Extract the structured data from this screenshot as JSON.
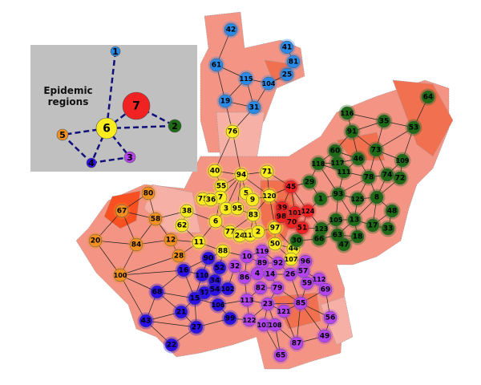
{
  "inset": {
    "title_line1": "Epidemic",
    "title_line2": "regions",
    "background": "#c0c0c0",
    "edge_color": "#10107a",
    "nodes": [
      {
        "id": "1",
        "region": "blue"
      },
      {
        "id": "2",
        "region": "green"
      },
      {
        "id": "3",
        "region": "purple"
      },
      {
        "id": "4",
        "region": "indigo"
      },
      {
        "id": "5",
        "region": "orange"
      },
      {
        "id": "6",
        "region": "yellow"
      },
      {
        "id": "7",
        "region": "red"
      }
    ],
    "edges": [
      [
        "1",
        "6"
      ],
      [
        "6",
        "7"
      ],
      [
        "7",
        "2"
      ],
      [
        "6",
        "2"
      ],
      [
        "6",
        "5"
      ],
      [
        "5",
        "4"
      ],
      [
        "6",
        "4"
      ],
      [
        "6",
        "3"
      ],
      [
        "4",
        "3"
      ]
    ]
  },
  "region_colors": {
    "blue": "#2a8ae8",
    "yellow": "#f8ec20",
    "red": "#f02222",
    "green": "#1e6a16",
    "orange": "#f09020",
    "indigo": "#2c10e8",
    "purple": "#b444f0"
  },
  "map_colors": {
    "light": "#f6b0a6",
    "mid": "#f49484",
    "dark": "#f07050",
    "hot": "#f85020",
    "border": "#999999"
  },
  "nodes": {
    "blue": [
      "42",
      "41",
      "81",
      "25",
      "61",
      "115",
      "104",
      "19",
      "31"
    ],
    "yellow": [
      "76",
      "40",
      "94",
      "71",
      "55",
      "7",
      "75",
      "36",
      "5",
      "9",
      "120",
      "3",
      "95",
      "83",
      "6",
      "38",
      "62",
      "11",
      "77",
      "24",
      "114",
      "2",
      "97",
      "50",
      "44",
      "88",
      "107"
    ],
    "red": [
      "45",
      "39",
      "98",
      "101",
      "70",
      "124",
      "51"
    ],
    "green": [
      "118",
      "29",
      "1",
      "60",
      "117",
      "111",
      "46",
      "116",
      "91",
      "35",
      "53",
      "64",
      "73",
      "109",
      "78",
      "74",
      "72",
      "93",
      "125",
      "8",
      "48",
      "105",
      "13",
      "17",
      "33",
      "123",
      "66",
      "63",
      "18",
      "47",
      "30"
    ],
    "orange": [
      "80",
      "67",
      "58",
      "20",
      "84",
      "12",
      "28",
      "100"
    ],
    "indigo": [
      "90",
      "16",
      "110",
      "52",
      "34",
      "37",
      "54",
      "102",
      "15",
      "106",
      "21",
      "99",
      "68",
      "43",
      "27",
      "22"
    ],
    "purple": [
      "10",
      "119",
      "89",
      "92",
      "96",
      "4",
      "14",
      "26",
      "57",
      "112",
      "86",
      "32",
      "59",
      "69",
      "82",
      "79",
      "113",
      "23",
      "121",
      "85",
      "56",
      "122",
      "103",
      "108",
      "87",
      "49",
      "65"
    ]
  },
  "edges": [
    [
      "42",
      "61"
    ],
    [
      "61",
      "19"
    ],
    [
      "61",
      "115"
    ],
    [
      "115",
      "19"
    ],
    [
      "115",
      "31"
    ],
    [
      "115",
      "104"
    ],
    [
      "104",
      "25"
    ],
    [
      "104",
      "31"
    ],
    [
      "19",
      "31"
    ],
    [
      "19",
      "76"
    ],
    [
      "31",
      "76"
    ],
    [
      "41",
      "81"
    ],
    [
      "81",
      "25"
    ],
    [
      "76",
      "40"
    ],
    [
      "76",
      "94"
    ],
    [
      "40",
      "94"
    ],
    [
      "40",
      "55"
    ],
    [
      "94",
      "55"
    ],
    [
      "94",
      "71"
    ],
    [
      "94",
      "5"
    ],
    [
      "94",
      "7"
    ],
    [
      "94",
      "3"
    ],
    [
      "94",
      "95"
    ],
    [
      "94",
      "120"
    ],
    [
      "71",
      "120"
    ],
    [
      "71",
      "45"
    ],
    [
      "55",
      "7"
    ],
    [
      "7",
      "75"
    ],
    [
      "7",
      "36"
    ],
    [
      "7",
      "6"
    ],
    [
      "5",
      "9"
    ],
    [
      "9",
      "120"
    ],
    [
      "120",
      "83"
    ],
    [
      "120",
      "45"
    ],
    [
      "120",
      "39"
    ],
    [
      "95",
      "83"
    ],
    [
      "3",
      "6"
    ],
    [
      "83",
      "77"
    ],
    [
      "83",
      "114"
    ],
    [
      "83",
      "2"
    ],
    [
      "6",
      "38"
    ],
    [
      "6",
      "11"
    ],
    [
      "6",
      "77"
    ],
    [
      "38",
      "62"
    ],
    [
      "38",
      "58"
    ],
    [
      "62",
      "11"
    ],
    [
      "11",
      "12"
    ],
    [
      "11",
      "88"
    ],
    [
      "11",
      "28"
    ],
    [
      "77",
      "24"
    ],
    [
      "24",
      "114"
    ],
    [
      "114",
      "2"
    ],
    [
      "2",
      "97"
    ],
    [
      "97",
      "50"
    ],
    [
      "97",
      "44"
    ],
    [
      "97",
      "120"
    ],
    [
      "50",
      "44"
    ],
    [
      "50",
      "119"
    ],
    [
      "50",
      "107"
    ],
    [
      "88",
      "10"
    ],
    [
      "88",
      "90"
    ],
    [
      "88",
      "52"
    ],
    [
      "45",
      "39"
    ],
    [
      "45",
      "101"
    ],
    [
      "45",
      "124"
    ],
    [
      "45",
      "29"
    ],
    [
      "39",
      "98"
    ],
    [
      "39",
      "101"
    ],
    [
      "98",
      "70"
    ],
    [
      "101",
      "70"
    ],
    [
      "101",
      "124"
    ],
    [
      "70",
      "51"
    ],
    [
      "124",
      "51"
    ],
    [
      "124",
      "1"
    ],
    [
      "124",
      "123"
    ],
    [
      "51",
      "123"
    ],
    [
      "51",
      "44"
    ],
    [
      "44",
      "30"
    ],
    [
      "118",
      "29"
    ],
    [
      "118",
      "117"
    ],
    [
      "118",
      "60"
    ],
    [
      "118",
      "111"
    ],
    [
      "118",
      "93"
    ],
    [
      "29",
      "1"
    ],
    [
      "29",
      "45"
    ],
    [
      "1",
      "93"
    ],
    [
      "60",
      "117"
    ],
    [
      "60",
      "46"
    ],
    [
      "60",
      "91"
    ],
    [
      "117",
      "111"
    ],
    [
      "117",
      "46"
    ],
    [
      "111",
      "46"
    ],
    [
      "111",
      "93"
    ],
    [
      "111",
      "78"
    ],
    [
      "116",
      "91"
    ],
    [
      "116",
      "35"
    ],
    [
      "91",
      "35"
    ],
    [
      "91",
      "46"
    ],
    [
      "91",
      "73"
    ],
    [
      "35",
      "53"
    ],
    [
      "35",
      "73"
    ],
    [
      "53",
      "64"
    ],
    [
      "53",
      "73"
    ],
    [
      "53",
      "109"
    ],
    [
      "73",
      "78"
    ],
    [
      "73",
      "74"
    ],
    [
      "73",
      "109"
    ],
    [
      "46",
      "78"
    ],
    [
      "109",
      "74"
    ],
    [
      "109",
      "72"
    ],
    [
      "78",
      "74"
    ],
    [
      "78",
      "93"
    ],
    [
      "78",
      "125"
    ],
    [
      "78",
      "8"
    ],
    [
      "74",
      "72"
    ],
    [
      "74",
      "8"
    ],
    [
      "72",
      "8"
    ],
    [
      "93",
      "125"
    ],
    [
      "93",
      "105"
    ],
    [
      "93",
      "13"
    ],
    [
      "125",
      "8"
    ],
    [
      "125",
      "13"
    ],
    [
      "8",
      "48"
    ],
    [
      "8",
      "17"
    ],
    [
      "8",
      "13"
    ],
    [
      "48",
      "33"
    ],
    [
      "48",
      "17"
    ],
    [
      "17",
      "33"
    ],
    [
      "13",
      "105"
    ],
    [
      "13",
      "17"
    ],
    [
      "13",
      "18"
    ],
    [
      "13",
      "63"
    ],
    [
      "105",
      "123"
    ],
    [
      "105",
      "63"
    ],
    [
      "123",
      "66"
    ],
    [
      "66",
      "63"
    ],
    [
      "63",
      "47"
    ],
    [
      "63",
      "18"
    ],
    [
      "18",
      "47"
    ],
    [
      "30",
      "66"
    ],
    [
      "80",
      "67"
    ],
    [
      "80",
      "58"
    ],
    [
      "67",
      "58"
    ],
    [
      "67",
      "20"
    ],
    [
      "67",
      "84"
    ],
    [
      "58",
      "84"
    ],
    [
      "58",
      "12"
    ],
    [
      "20",
      "84"
    ],
    [
      "20",
      "100"
    ],
    [
      "84",
      "12"
    ],
    [
      "84",
      "100"
    ],
    [
      "12",
      "28"
    ],
    [
      "28",
      "100"
    ],
    [
      "100",
      "16"
    ],
    [
      "100",
      "68"
    ],
    [
      "100",
      "43"
    ],
    [
      "90",
      "16"
    ],
    [
      "90",
      "110"
    ],
    [
      "16",
      "110"
    ],
    [
      "16",
      "15"
    ],
    [
      "16",
      "68"
    ],
    [
      "110",
      "15"
    ],
    [
      "52",
      "34"
    ],
    [
      "34",
      "54"
    ],
    [
      "37",
      "54"
    ],
    [
      "54",
      "102"
    ],
    [
      "15",
      "37"
    ],
    [
      "15",
      "21"
    ],
    [
      "15",
      "27"
    ],
    [
      "15",
      "106"
    ],
    [
      "106",
      "99"
    ],
    [
      "106",
      "113"
    ],
    [
      "68",
      "21"
    ],
    [
      "68",
      "43"
    ],
    [
      "68",
      "15"
    ],
    [
      "43",
      "21"
    ],
    [
      "43",
      "27"
    ],
    [
      "43",
      "22"
    ],
    [
      "27",
      "22"
    ],
    [
      "27",
      "99"
    ],
    [
      "21",
      "27"
    ],
    [
      "10",
      "119"
    ],
    [
      "10",
      "86"
    ],
    [
      "10",
      "89"
    ],
    [
      "119",
      "92"
    ],
    [
      "119",
      "89"
    ],
    [
      "89",
      "4"
    ],
    [
      "89",
      "92"
    ],
    [
      "92",
      "26"
    ],
    [
      "92",
      "107"
    ],
    [
      "107",
      "96"
    ],
    [
      "96",
      "57"
    ],
    [
      "57",
      "26"
    ],
    [
      "57",
      "59"
    ],
    [
      "57",
      "112"
    ],
    [
      "112",
      "59"
    ],
    [
      "112",
      "69"
    ],
    [
      "4",
      "86"
    ],
    [
      "4",
      "14"
    ],
    [
      "14",
      "79"
    ],
    [
      "14",
      "26"
    ],
    [
      "86",
      "32"
    ],
    [
      "86",
      "113"
    ],
    [
      "32",
      "102"
    ],
    [
      "82",
      "79"
    ],
    [
      "82",
      "113"
    ],
    [
      "79",
      "23"
    ],
    [
      "79",
      "85"
    ],
    [
      "113",
      "23"
    ],
    [
      "113",
      "122"
    ],
    [
      "23",
      "121"
    ],
    [
      "23",
      "122"
    ],
    [
      "23",
      "103"
    ],
    [
      "23",
      "108"
    ],
    [
      "23",
      "85"
    ],
    [
      "121",
      "85"
    ],
    [
      "121",
      "87"
    ],
    [
      "85",
      "59"
    ],
    [
      "85",
      "69"
    ],
    [
      "85",
      "56"
    ],
    [
      "85",
      "49"
    ],
    [
      "85",
      "87"
    ],
    [
      "69",
      "56"
    ],
    [
      "56",
      "49"
    ],
    [
      "49",
      "87"
    ],
    [
      "108",
      "87"
    ],
    [
      "108",
      "65"
    ],
    [
      "103",
      "65"
    ],
    [
      "26",
      "85"
    ],
    [
      "122",
      "99"
    ]
  ]
}
